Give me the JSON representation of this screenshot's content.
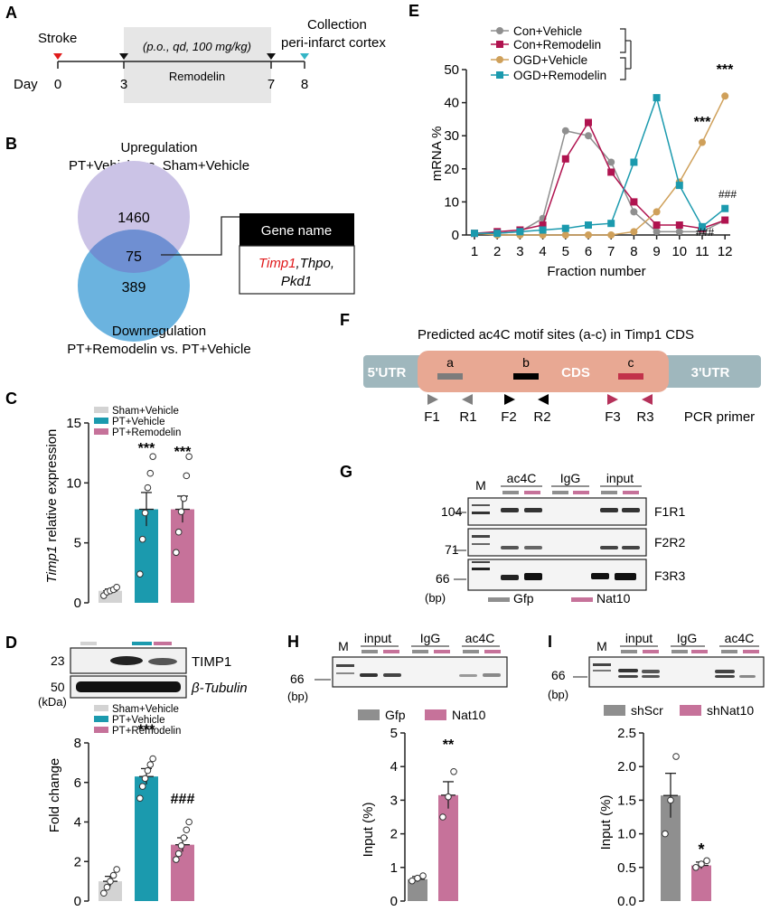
{
  "panel_labels": {
    "A": "A",
    "B": "B",
    "C": "C",
    "D": "D",
    "E": "E",
    "F": "F",
    "G": "G",
    "H": "H",
    "I": "I"
  },
  "colors": {
    "gray": "#8f8f8f",
    "teal": "#1b9aae",
    "pink": "#c6729a",
    "light_gray": "#d3d3d3",
    "venn_up": "#cbc3e6",
    "venn_down": "#6bb3df",
    "venn_overlap": "#6f8fd2",
    "crimson": "#b0134f",
    "gold": "#cfa05a",
    "cds": "#e8a893",
    "utr": "#9fb7bd",
    "red_text": "#e0191b"
  },
  "panelA": {
    "stroke": "Stroke",
    "collection": "Collection",
    "site": "peri-infarct cortex",
    "dosing": "(p.o., qd, 100 mg/kg)",
    "drug": "Remodelin",
    "day_label": "Day",
    "days": [
      "0",
      "3",
      "7",
      "8"
    ]
  },
  "panelB": {
    "up_title": "Upregulation",
    "up_comparison": "PT+Vehicle vs. Sham+Vehicle",
    "up_count": "1460",
    "overlap_count": "75",
    "down_count": "389",
    "down_title": "Downregulation",
    "down_comparison": "PT+Remodelin vs. PT+Vehicle",
    "gene_header": "Gene name",
    "gene_highlight": "Timp1",
    "genes_rest_line1": ",Thpo,",
    "genes_line2": "Pkd1"
  },
  "panelE": {
    "legend": [
      "Con+Vehicle",
      "Con+Remodelin",
      "OGD+Vehicle",
      "OGD+Remodelin"
    ],
    "sig_stars": [
      "***",
      "***"
    ],
    "sig_hash": [
      "###",
      "###"
    ]
  },
  "panelF": {
    "title": "Predicted ac4C motif sites (a-c) in Timp1 CDS",
    "utr5": "5'UTR",
    "cds": "CDS",
    "utr3": "3'UTR",
    "sites": [
      "a",
      "b",
      "c"
    ],
    "primers": [
      "F1",
      "R1",
      "F2",
      "R2",
      "F3",
      "R3"
    ],
    "primer_label": "PCR primer"
  },
  "panelG": {
    "marker": "M",
    "lanes": [
      "ac4C",
      "IgG",
      "input"
    ],
    "rows": [
      "F1R1",
      "F2R2",
      "F3R3"
    ],
    "sizes": [
      "104",
      "71",
      "66"
    ],
    "unit": "(bp)",
    "legend": [
      "Gfp",
      "Nat10"
    ]
  },
  "panelD": {
    "blot_labels": [
      "TIMP1",
      "β-Tubulin"
    ],
    "kda": [
      "23",
      "50"
    ],
    "unit": "(kDa)",
    "sig": [
      "***",
      "###"
    ]
  },
  "panelH": {
    "marker": "M",
    "lanes": [
      "input",
      "IgG",
      "ac4C"
    ],
    "size": "66",
    "unit": "(bp)",
    "legend": [
      "Gfp",
      "Nat10"
    ],
    "sig": "**"
  },
  "panelI": {
    "marker": "M",
    "lanes": [
      "input",
      "IgG",
      "ac4C"
    ],
    "size": "66",
    "unit": "(bp)",
    "legend": [
      "shScr",
      "shNat10"
    ],
    "sig": "*"
  },
  "chart_data": [
    {
      "id": "C",
      "type": "bar",
      "ylabel": "Timp1 relative expression",
      "ylim": [
        0,
        15
      ],
      "yticks": [
        "0",
        "5",
        "10",
        "15"
      ],
      "series": [
        {
          "name": "Sham+Vehicle",
          "value": 1.0,
          "sem": 0.15,
          "points": [
            0.6,
            0.9,
            1.0,
            1.1,
            1.3
          ]
        },
        {
          "name": "PT+Vehicle",
          "value": 7.8,
          "sem": 1.4,
          "points": [
            2.4,
            5.3,
            7.5,
            9.6,
            10.8,
            12.2
          ]
        },
        {
          "name": "PT+Remodelin",
          "value": 7.8,
          "sem": 1.1,
          "points": [
            4.2,
            5.9,
            7.6,
            8.7,
            10.6,
            12.2
          ]
        }
      ],
      "sig": [
        "***",
        "***"
      ]
    },
    {
      "id": "D",
      "type": "bar",
      "ylabel": "Fold change",
      "ylim": [
        0,
        8
      ],
      "yticks": [
        "0",
        "2",
        "4",
        "6",
        "8"
      ],
      "series": [
        {
          "name": "Sham+Vehicle",
          "value": 1.0,
          "sem": 0.25,
          "points": [
            0.4,
            0.7,
            1.0,
            1.3,
            1.6
          ]
        },
        {
          "name": "PT+Vehicle",
          "value": 6.3,
          "sem": 0.4,
          "points": [
            5.2,
            5.8,
            6.2,
            6.6,
            6.9,
            7.2
          ]
        },
        {
          "name": "PT+Remodelin",
          "value": 2.85,
          "sem": 0.35,
          "points": [
            2.1,
            2.4,
            2.8,
            3.2,
            3.6,
            4.0
          ]
        }
      ]
    },
    {
      "id": "E",
      "type": "line",
      "xlabel": "Fraction number",
      "ylabel": "mRNA %",
      "ylim": [
        0,
        50
      ],
      "yticks": [
        "0",
        "10",
        "20",
        "30",
        "40",
        "50"
      ],
      "x": [
        "1",
        "2",
        "3",
        "4",
        "5",
        "6",
        "7",
        "8",
        "9",
        "10",
        "11",
        "12"
      ],
      "series": [
        {
          "name": "Con+Vehicle",
          "values": [
            0.5,
            0.5,
            1,
            5,
            31.5,
            30,
            22,
            7,
            1,
            1,
            1,
            4.5
          ]
        },
        {
          "name": "Con+Remodelin",
          "values": [
            0.5,
            1,
            1.5,
            3,
            23,
            34,
            19,
            10,
            3,
            3,
            2,
            4.5
          ]
        },
        {
          "name": "OGD+Vehicle",
          "values": [
            0.5,
            0,
            0,
            0,
            0,
            0,
            0,
            1,
            7,
            16,
            28,
            42
          ]
        },
        {
          "name": "OGD+Remodelin",
          "values": [
            0.5,
            0.5,
            1,
            1.5,
            2,
            3,
            3.5,
            22,
            41.5,
            15,
            2.5,
            8
          ]
        }
      ]
    },
    {
      "id": "H",
      "type": "bar",
      "ylabel": "Input (%)",
      "ylim": [
        0,
        5
      ],
      "yticks": [
        "0",
        "1",
        "2",
        "3",
        "4",
        "5"
      ],
      "series": [
        {
          "name": "Gfp",
          "value": 0.65,
          "sem": 0.08,
          "points": [
            0.6,
            0.68,
            0.75
          ]
        },
        {
          "name": "Nat10",
          "value": 3.15,
          "sem": 0.4,
          "points": [
            2.5,
            3.1,
            3.85
          ]
        }
      ]
    },
    {
      "id": "I",
      "type": "bar",
      "ylabel": "Input (%)",
      "ylim": [
        0,
        2.5
      ],
      "yticks": [
        "0.0",
        "0.5",
        "1.0",
        "1.5",
        "2.0",
        "2.5"
      ],
      "series": [
        {
          "name": "shScr",
          "value": 1.57,
          "sem": 0.33,
          "points": [
            1.0,
            1.5,
            2.15
          ]
        },
        {
          "name": "shNat10",
          "value": 0.53,
          "sem": 0.05,
          "points": [
            0.5,
            0.55,
            0.6
          ]
        }
      ]
    }
  ]
}
